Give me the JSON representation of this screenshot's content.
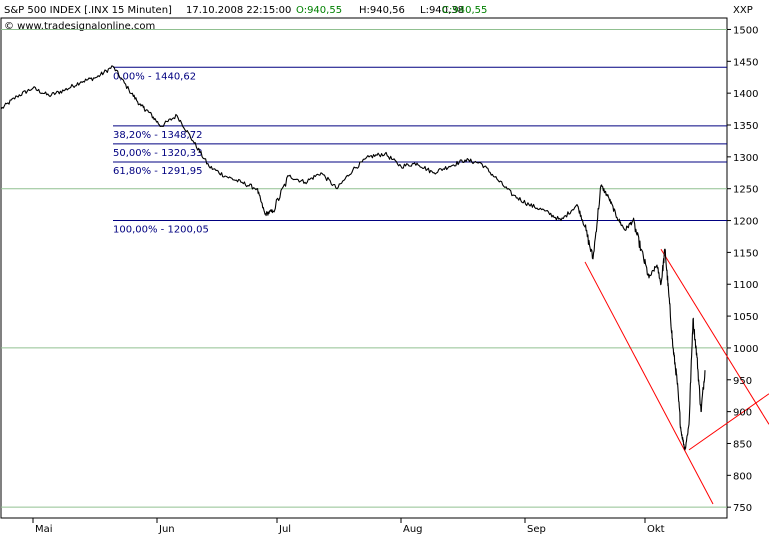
{
  "header": {
    "instrument": "S&P 500 INDEX [.INX  15 Minuten]",
    "datetime": "17.10.2008 22:15:00",
    "open": "O:940,55",
    "high": "H:940,56",
    "low": "L:940,38",
    "close": "C:940,55",
    "source": "© www.tradesignalonline.com",
    "symbol": "XXP"
  },
  "colors": {
    "price": "#000000",
    "fib": "#000080",
    "trend": "#ff0000",
    "grid": "#90c090",
    "open": "#008000",
    "close": "#008000",
    "header_text": "#000000"
  },
  "chart_data": {
    "type": "line",
    "y_ticks": [
      "1500",
      "1450",
      "1400",
      "1350",
      "1300",
      "1250",
      "1200",
      "1150",
      "1100",
      "1050",
      "1000",
      "950",
      "900",
      "850",
      "800",
      "750"
    ],
    "ylim": [
      733,
      1518
    ],
    "x_ticks": [
      "Mai",
      "Jun",
      "Jul",
      "Aug",
      "Sep",
      "Okt"
    ],
    "x_tick_days": [
      0,
      31,
      61,
      92,
      123,
      153
    ],
    "xlim": [
      -8,
      190
    ],
    "grid_y": [
      1500,
      1250,
      1000,
      750
    ],
    "price_series": {
      "day": [
        -8,
        -4,
        0,
        4,
        8,
        12,
        16,
        20,
        24,
        27,
        29,
        32,
        36,
        40,
        44,
        48,
        52,
        56,
        58,
        60,
        64,
        68,
        72,
        76,
        80,
        84,
        88,
        92,
        96,
        100,
        104,
        108,
        112,
        116,
        120,
        124,
        128,
        132,
        136,
        138,
        140,
        142,
        144,
        146,
        148,
        150,
        152,
        154,
        156,
        157,
        158,
        159,
        160,
        161,
        162,
        163,
        164,
        165,
        166,
        167,
        168
      ],
      "value": [
        1375,
        1395,
        1408,
        1396,
        1405,
        1418,
        1425,
        1442,
        1405,
        1380,
        1370,
        1348,
        1365,
        1325,
        1285,
        1270,
        1260,
        1250,
        1210,
        1215,
        1270,
        1260,
        1275,
        1250,
        1280,
        1300,
        1305,
        1285,
        1290,
        1275,
        1285,
        1295,
        1290,
        1265,
        1240,
        1225,
        1215,
        1200,
        1225,
        1190,
        1140,
        1255,
        1235,
        1205,
        1185,
        1200,
        1155,
        1110,
        1130,
        1100,
        1155,
        1080,
        1000,
        950,
        870,
        840,
        880,
        1045,
        985,
        900,
        965
      ]
    },
    "fib_levels": [
      {
        "label": "0,00% - 1440,62",
        "value": 1440.62
      },
      {
        "label": "38,20% - 1348,72",
        "value": 1348.72
      },
      {
        "label": "50,00% - 1320,33",
        "value": 1320.33
      },
      {
        "label": "61,80% - 1291,95",
        "value": 1291.95
      },
      {
        "label": "100,00% - 1200,05",
        "value": 1200.05
      }
    ],
    "fib_start_day": 20,
    "trend_lines": [
      {
        "from": [
          138,
          1135
        ],
        "to": [
          170,
          755
        ]
      },
      {
        "from": [
          157,
          1155
        ],
        "to": [
          184,
          880
        ]
      },
      {
        "from": [
          164,
          840
        ],
        "to": [
          184,
          928
        ]
      }
    ]
  }
}
